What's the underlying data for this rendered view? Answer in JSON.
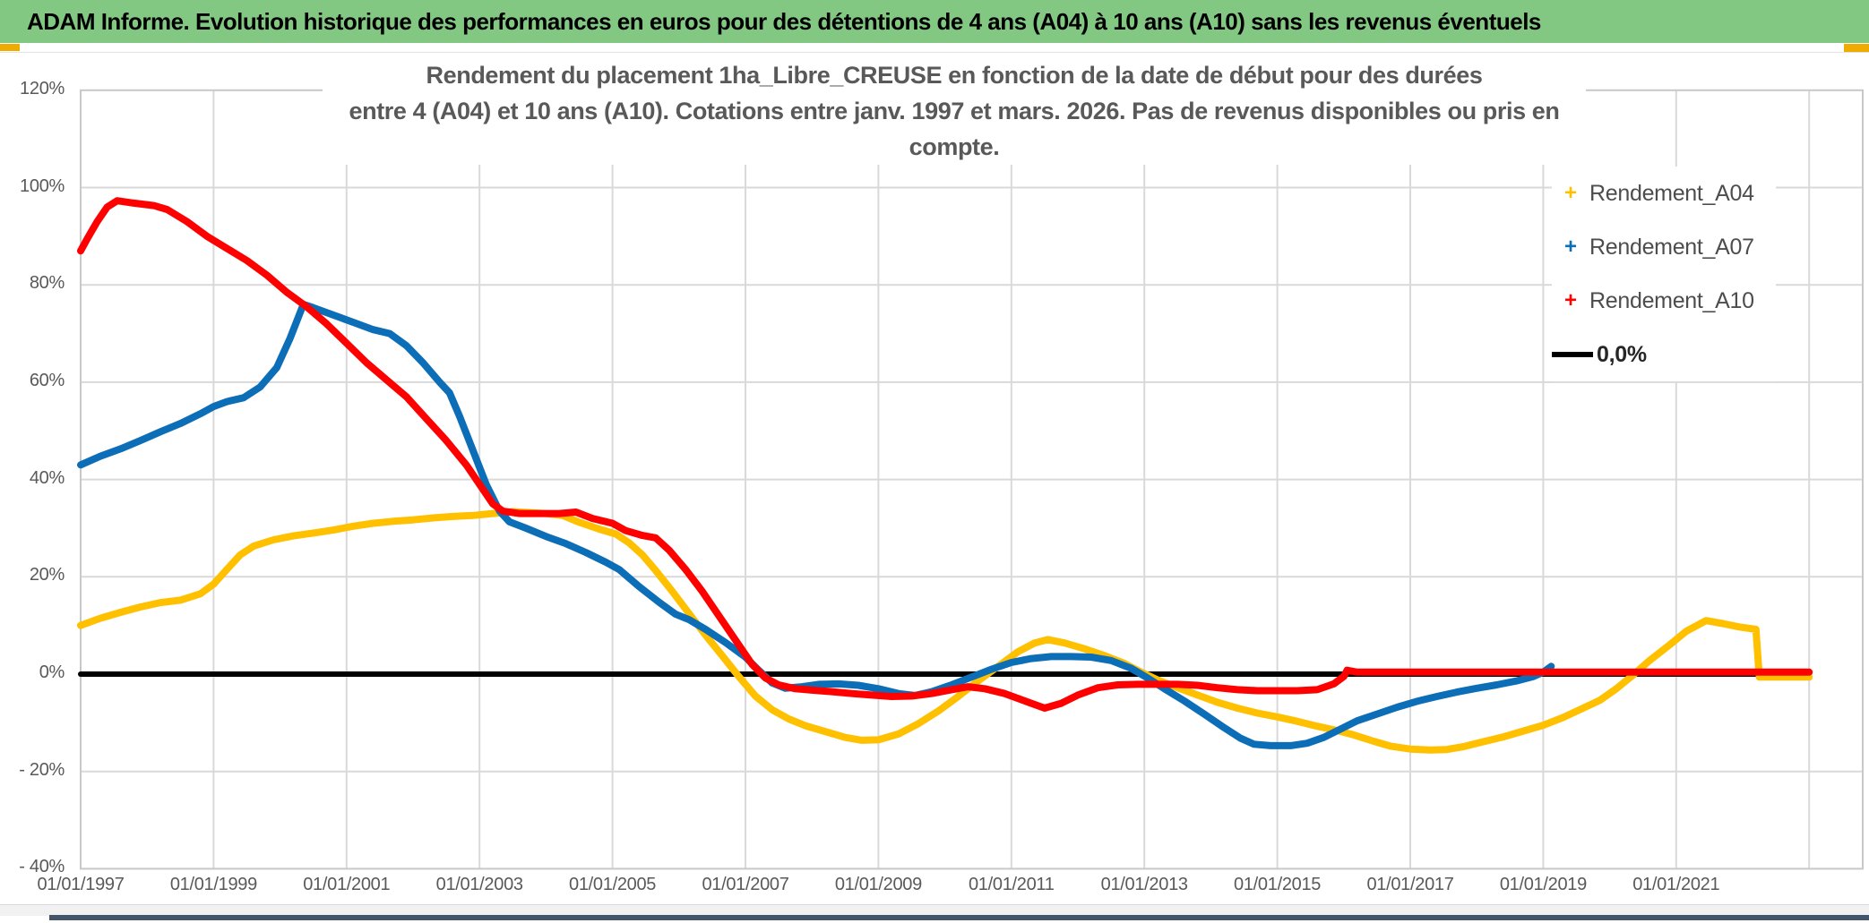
{
  "header": {
    "title": "ADAM Informe. Evolution historique des performances en euros pour des détentions de 4 ans (A04) à 10 ans (A10) sans les revenus éventuels"
  },
  "colors": {
    "header_green": "#82c882",
    "a04_yellow": "#FFC000",
    "a07_blue": "#0D6EB8",
    "a10_red": "#FF0000",
    "zero_black": "#000000",
    "gridline": "#d9d9d9",
    "plot_border": "#c8c8c8",
    "text_gray": "#595959",
    "handle_orange": "#f0ab00"
  },
  "chart_data": {
    "type": "line",
    "title_line1": "Rendement du placement 1ha_Libre_CREUSE en fonction de la date de début pour des durées",
    "title_line2": "entre 4 (A04) et 10 ans (A10). Cotations entre janv. 1997 et mars. 2026. Pas de revenus disponibles ou pris en compte.",
    "axis_ranges": {
      "x_years": [
        1997,
        2023.85
      ],
      "y_percent": [
        -40,
        120
      ]
    },
    "grid": true,
    "legend_position": "right-top",
    "y_ticks": [
      {
        "label": "120%",
        "value": 120
      },
      {
        "label": "100%",
        "value": 100
      },
      {
        "label": "80%",
        "value": 80
      },
      {
        "label": "60%",
        "value": 60
      },
      {
        "label": "40%",
        "value": 40
      },
      {
        "label": "20%",
        "value": 20
      },
      {
        "label": "0%",
        "value": 0
      },
      {
        "label": "- 20%",
        "value": -20
      },
      {
        "label": "- 40%",
        "value": -40
      }
    ],
    "x_ticks": [
      {
        "label": "01/01/1997",
        "year": 1997
      },
      {
        "label": "01/01/1999",
        "year": 1999
      },
      {
        "label": "01/01/2001",
        "year": 2001
      },
      {
        "label": "01/01/2003",
        "year": 2003
      },
      {
        "label": "01/01/2005",
        "year": 2005
      },
      {
        "label": "01/01/2007",
        "year": 2007
      },
      {
        "label": "01/01/2009",
        "year": 2009
      },
      {
        "label": "01/01/2011",
        "year": 2011
      },
      {
        "label": "01/01/2013",
        "year": 2013
      },
      {
        "label": "01/01/2015",
        "year": 2015
      },
      {
        "label": "01/01/2017",
        "year": 2017
      },
      {
        "label": "01/01/2019",
        "year": 2019
      },
      {
        "label": "01/01/2021",
        "year": 2021
      }
    ],
    "x_gridlines_unlabeled_years": [
      2023
    ],
    "legend": [
      {
        "label": "Rendement_A04",
        "marker": "+",
        "color": "#FFC000"
      },
      {
        "label": "Rendement_A07",
        "marker": "+",
        "color": "#0D6EB8"
      },
      {
        "label": "Rendement_A10",
        "marker": "+",
        "color": "#FF0000"
      },
      {
        "label": "0,0%",
        "marker": "line",
        "color": "#000000"
      }
    ],
    "series": [
      {
        "name": "zero_line_0_0pct",
        "color": "#000000",
        "width": 6,
        "points": [
          [
            1997.0,
            0
          ],
          [
            2023.0,
            0
          ]
        ]
      },
      {
        "name": "Rendement_A04",
        "color": "#FFC000",
        "width": 8,
        "points": [
          [
            1997.0,
            10
          ],
          [
            1997.3,
            11.5
          ],
          [
            1997.6,
            12.7
          ],
          [
            1997.9,
            13.8
          ],
          [
            1998.2,
            14.7
          ],
          [
            1998.5,
            15.2
          ],
          [
            1998.8,
            16.5
          ],
          [
            1999.0,
            18.5
          ],
          [
            1999.2,
            21.5
          ],
          [
            1999.4,
            24.5
          ],
          [
            1999.6,
            26.3
          ],
          [
            1999.9,
            27.6
          ],
          [
            2000.2,
            28.4
          ],
          [
            2000.5,
            29
          ],
          [
            2000.8,
            29.6
          ],
          [
            2001.1,
            30.4
          ],
          [
            2001.4,
            31
          ],
          [
            2001.7,
            31.4
          ],
          [
            2002.0,
            31.7
          ],
          [
            2002.3,
            32.1
          ],
          [
            2002.6,
            32.4
          ],
          [
            2002.9,
            32.6
          ],
          [
            2003.2,
            33
          ],
          [
            2003.5,
            33.4
          ],
          [
            2003.75,
            33.2
          ],
          [
            2004.0,
            33
          ],
          [
            2004.25,
            32.6
          ],
          [
            2004.5,
            31.2
          ],
          [
            2004.8,
            29.8
          ],
          [
            2005.05,
            28.8
          ],
          [
            2005.25,
            27
          ],
          [
            2005.45,
            24.5
          ],
          [
            2005.65,
            21.3
          ],
          [
            2005.9,
            17
          ],
          [
            2006.15,
            12.5
          ],
          [
            2006.4,
            8
          ],
          [
            2006.65,
            3.8
          ],
          [
            2006.9,
            -0.5
          ],
          [
            2007.15,
            -4.5
          ],
          [
            2007.4,
            -7.3
          ],
          [
            2007.65,
            -9.2
          ],
          [
            2007.9,
            -10.6
          ],
          [
            2008.2,
            -11.8
          ],
          [
            2008.5,
            -13
          ],
          [
            2008.75,
            -13.6
          ],
          [
            2009.0,
            -13.5
          ],
          [
            2009.3,
            -12.3
          ],
          [
            2009.6,
            -10.2
          ],
          [
            2009.9,
            -7.6
          ],
          [
            2010.2,
            -4.6
          ],
          [
            2010.5,
            -1.4
          ],
          [
            2010.8,
            1.6
          ],
          [
            2011.1,
            4.6
          ],
          [
            2011.35,
            6.4
          ],
          [
            2011.55,
            7.1
          ],
          [
            2011.8,
            6.4
          ],
          [
            2012.1,
            5.2
          ],
          [
            2012.4,
            3.8
          ],
          [
            2012.7,
            2.2
          ],
          [
            2012.95,
            0.4
          ],
          [
            2013.2,
            -1.2
          ],
          [
            2013.5,
            -2.8
          ],
          [
            2013.8,
            -4.3
          ],
          [
            2014.1,
            -5.8
          ],
          [
            2014.4,
            -7
          ],
          [
            2014.7,
            -8
          ],
          [
            2015.0,
            -8.8
          ],
          [
            2015.3,
            -9.7
          ],
          [
            2015.6,
            -10.7
          ],
          [
            2015.9,
            -11.6
          ],
          [
            2016.15,
            -12.5
          ],
          [
            2016.45,
            -13.8
          ],
          [
            2016.7,
            -14.8
          ],
          [
            2017.0,
            -15.4
          ],
          [
            2017.3,
            -15.6
          ],
          [
            2017.55,
            -15.5
          ],
          [
            2017.8,
            -14.9
          ],
          [
            2018.1,
            -13.9
          ],
          [
            2018.4,
            -12.9
          ],
          [
            2018.7,
            -11.7
          ],
          [
            2019.0,
            -10.5
          ],
          [
            2019.3,
            -8.9
          ],
          [
            2019.6,
            -7
          ],
          [
            2019.85,
            -5.4
          ],
          [
            2020.1,
            -3
          ],
          [
            2020.35,
            -0.2
          ],
          [
            2020.6,
            2.8
          ],
          [
            2020.9,
            6
          ],
          [
            2021.15,
            8.8
          ],
          [
            2021.45,
            11
          ],
          [
            2021.7,
            10.4
          ],
          [
            2021.95,
            9.7
          ],
          [
            2022.2,
            9.2
          ],
          [
            2022.25,
            -0.6
          ],
          [
            2023.0,
            -0.6
          ]
        ]
      },
      {
        "name": "Rendement_A07",
        "color": "#0D6EB8",
        "width": 8,
        "points": [
          [
            1997.0,
            43
          ],
          [
            1997.3,
            44.8
          ],
          [
            1997.6,
            46.3
          ],
          [
            1997.9,
            48
          ],
          [
            1998.2,
            49.8
          ],
          [
            1998.5,
            51.5
          ],
          [
            1998.8,
            53.5
          ],
          [
            1999.0,
            55
          ],
          [
            1999.2,
            56
          ],
          [
            1999.45,
            56.8
          ],
          [
            1999.7,
            59
          ],
          [
            1999.95,
            63
          ],
          [
            2000.15,
            69
          ],
          [
            2000.35,
            76
          ],
          [
            2000.5,
            75.3
          ],
          [
            2000.8,
            73.8
          ],
          [
            2001.1,
            72.3
          ],
          [
            2001.4,
            70.8
          ],
          [
            2001.65,
            70
          ],
          [
            2001.9,
            67.5
          ],
          [
            2002.15,
            64
          ],
          [
            2002.4,
            60
          ],
          [
            2002.55,
            57.8
          ],
          [
            2002.7,
            53
          ],
          [
            2002.9,
            46
          ],
          [
            2003.1,
            39
          ],
          [
            2003.3,
            33.5
          ],
          [
            2003.45,
            31.3
          ],
          [
            2003.7,
            30
          ],
          [
            2004.0,
            28.3
          ],
          [
            2004.3,
            26.8
          ],
          [
            2004.6,
            25
          ],
          [
            2004.9,
            23
          ],
          [
            2005.1,
            21.5
          ],
          [
            2005.4,
            18
          ],
          [
            2005.7,
            14.8
          ],
          [
            2005.95,
            12.3
          ],
          [
            2006.15,
            11.2
          ],
          [
            2006.4,
            9.2
          ],
          [
            2006.7,
            6.5
          ],
          [
            2007.0,
            3.5
          ],
          [
            2007.2,
            0.8
          ],
          [
            2007.4,
            -1.8
          ],
          [
            2007.6,
            -2.9
          ],
          [
            2007.85,
            -2.6
          ],
          [
            2008.1,
            -2.1
          ],
          [
            2008.4,
            -2
          ],
          [
            2008.7,
            -2.3
          ],
          [
            2009.0,
            -3
          ],
          [
            2009.3,
            -4
          ],
          [
            2009.55,
            -4.4
          ],
          [
            2009.8,
            -3.6
          ],
          [
            2010.1,
            -2.2
          ],
          [
            2010.4,
            -0.6
          ],
          [
            2010.7,
            1
          ],
          [
            2011.0,
            2.4
          ],
          [
            2011.3,
            3.2
          ],
          [
            2011.6,
            3.6
          ],
          [
            2011.9,
            3.6
          ],
          [
            2012.2,
            3.5
          ],
          [
            2012.5,
            2.8
          ],
          [
            2012.8,
            1.2
          ],
          [
            2013.05,
            -0.8
          ],
          [
            2013.3,
            -3
          ],
          [
            2013.6,
            -5.5
          ],
          [
            2013.9,
            -8.2
          ],
          [
            2014.2,
            -11
          ],
          [
            2014.45,
            -13.2
          ],
          [
            2014.65,
            -14.4
          ],
          [
            2014.9,
            -14.7
          ],
          [
            2015.2,
            -14.7
          ],
          [
            2015.45,
            -14.2
          ],
          [
            2015.7,
            -13
          ],
          [
            2015.95,
            -11.3
          ],
          [
            2016.2,
            -9.6
          ],
          [
            2016.5,
            -8.2
          ],
          [
            2016.8,
            -6.8
          ],
          [
            2017.1,
            -5.6
          ],
          [
            2017.4,
            -4.6
          ],
          [
            2017.7,
            -3.7
          ],
          [
            2018.0,
            -2.9
          ],
          [
            2018.3,
            -2.2
          ],
          [
            2018.6,
            -1.4
          ],
          [
            2018.85,
            -0.5
          ],
          [
            2019.0,
            0.4
          ],
          [
            2019.12,
            1.6
          ]
        ]
      },
      {
        "name": "Rendement_A10",
        "color": "#FF0000",
        "width": 8,
        "points": [
          [
            1997.0,
            87
          ],
          [
            1997.1,
            89.5
          ],
          [
            1997.25,
            93
          ],
          [
            1997.4,
            96
          ],
          [
            1997.55,
            97.3
          ],
          [
            1997.8,
            96.8
          ],
          [
            1998.1,
            96.3
          ],
          [
            1998.3,
            95.5
          ],
          [
            1998.6,
            93
          ],
          [
            1998.9,
            90
          ],
          [
            1999.2,
            87.5
          ],
          [
            1999.5,
            85
          ],
          [
            1999.8,
            82
          ],
          [
            2000.1,
            78.5
          ],
          [
            2000.4,
            75.5
          ],
          [
            2000.7,
            72
          ],
          [
            2001.0,
            68
          ],
          [
            2001.3,
            64
          ],
          [
            2001.6,
            60.5
          ],
          [
            2001.9,
            57
          ],
          [
            2002.2,
            52.5
          ],
          [
            2002.5,
            48
          ],
          [
            2002.8,
            43
          ],
          [
            2003.0,
            39
          ],
          [
            2003.2,
            35
          ],
          [
            2003.35,
            33.5
          ],
          [
            2003.6,
            33
          ],
          [
            2003.9,
            33
          ],
          [
            2004.2,
            33
          ],
          [
            2004.45,
            33.3
          ],
          [
            2004.7,
            32
          ],
          [
            2005.0,
            31
          ],
          [
            2005.2,
            29.5
          ],
          [
            2005.45,
            28.5
          ],
          [
            2005.65,
            28
          ],
          [
            2005.85,
            25.5
          ],
          [
            2006.1,
            21.5
          ],
          [
            2006.35,
            17
          ],
          [
            2006.6,
            12
          ],
          [
            2006.85,
            7
          ],
          [
            2007.1,
            2
          ],
          [
            2007.3,
            -0.8
          ],
          [
            2007.5,
            -2.2
          ],
          [
            2007.75,
            -3
          ],
          [
            2008.0,
            -3.3
          ],
          [
            2008.3,
            -3.6
          ],
          [
            2008.6,
            -4
          ],
          [
            2008.9,
            -4.3
          ],
          [
            2009.2,
            -4.6
          ],
          [
            2009.5,
            -4.5
          ],
          [
            2009.8,
            -4
          ],
          [
            2010.1,
            -3.2
          ],
          [
            2010.35,
            -2.6
          ],
          [
            2010.6,
            -3
          ],
          [
            2010.9,
            -4
          ],
          [
            2011.2,
            -5.5
          ],
          [
            2011.5,
            -7
          ],
          [
            2011.75,
            -6
          ],
          [
            2012.0,
            -4.3
          ],
          [
            2012.3,
            -2.8
          ],
          [
            2012.6,
            -2.2
          ],
          [
            2012.9,
            -2.1
          ],
          [
            2013.2,
            -2.1
          ],
          [
            2013.5,
            -2.1
          ],
          [
            2013.8,
            -2.3
          ],
          [
            2014.1,
            -2.8
          ],
          [
            2014.4,
            -3.2
          ],
          [
            2014.7,
            -3.4
          ],
          [
            2015.0,
            -3.4
          ],
          [
            2015.3,
            -3.4
          ],
          [
            2015.6,
            -3.2
          ],
          [
            2015.85,
            -2
          ],
          [
            2016.0,
            -0.5
          ],
          [
            2016.05,
            0.8
          ],
          [
            2016.2,
            0.4
          ],
          [
            2023.0,
            0.4
          ]
        ]
      }
    ]
  }
}
